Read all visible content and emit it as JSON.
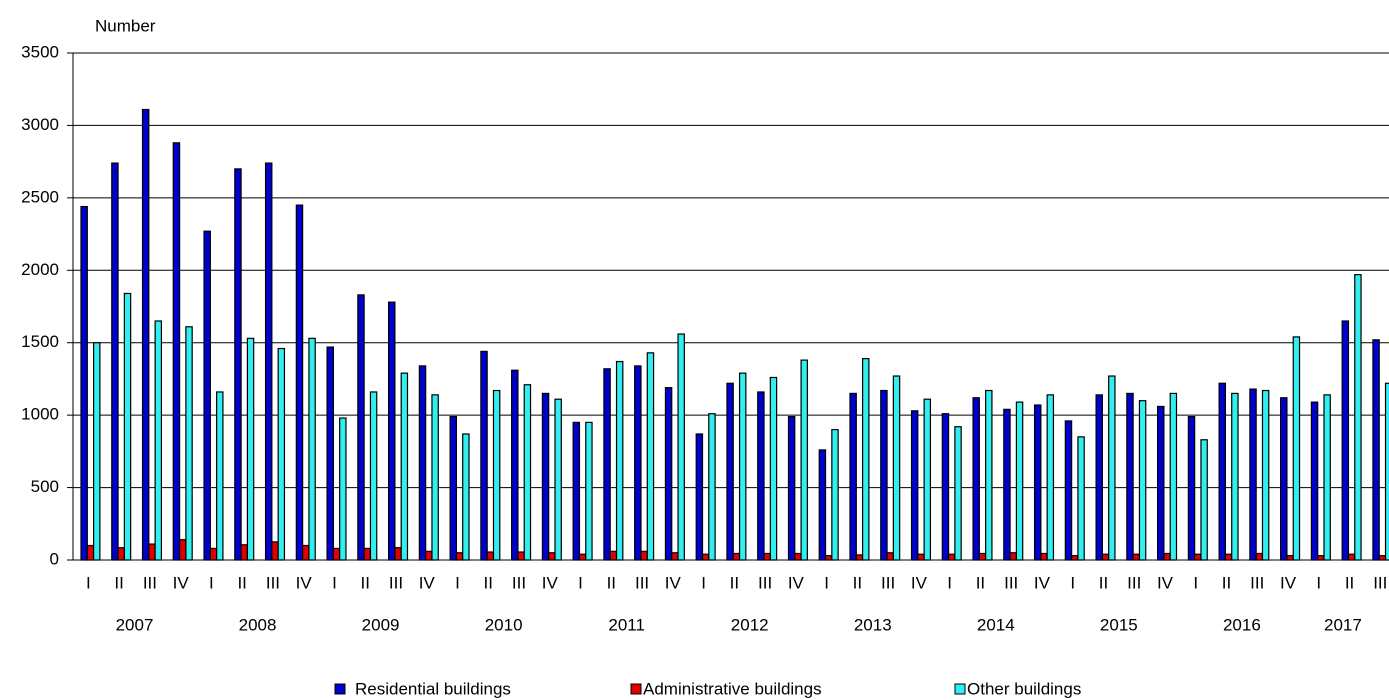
{
  "chart_data": {
    "type": "bar",
    "y_axis_label": "Number",
    "categories": [
      "I",
      "II",
      "III",
      "IV",
      "I",
      "II",
      "III",
      "IV",
      "I",
      "II",
      "III",
      "IV",
      "I",
      "II",
      "III",
      "IV",
      "I",
      "II",
      "III",
      "IV",
      "I",
      "II",
      "III",
      "IV",
      "I",
      "II",
      "III",
      "IV",
      "I",
      "II",
      "III",
      "IV",
      "I",
      "II",
      "III",
      "IV",
      "I",
      "II",
      "III",
      "IV",
      "I",
      "II",
      "III"
    ],
    "years": [
      "2007",
      "2008",
      "2009",
      "2010",
      "2011",
      "2012",
      "2013",
      "2014",
      "2015",
      "2016",
      "2017"
    ],
    "series": [
      {
        "name": "Residential buildings",
        "color": "#0000cc",
        "values": [
          2440,
          2740,
          3110,
          2880,
          2270,
          2700,
          2740,
          2450,
          1470,
          1830,
          1780,
          1340,
          990,
          1440,
          1310,
          1150,
          950,
          1320,
          1340,
          1190,
          870,
          1220,
          1160,
          990,
          760,
          1150,
          1170,
          1030,
          1010,
          1120,
          1040,
          1070,
          960,
          1140,
          1150,
          1060,
          990,
          1220,
          1180,
          1120,
          1090,
          1650,
          1520
        ]
      },
      {
        "name": "Administrative buildings",
        "color": "#e00000",
        "values": [
          100,
          85,
          110,
          140,
          80,
          105,
          125,
          100,
          80,
          80,
          85,
          60,
          50,
          55,
          55,
          50,
          40,
          60,
          60,
          50,
          40,
          45,
          45,
          45,
          30,
          35,
          50,
          40,
          40,
          45,
          50,
          45,
          30,
          40,
          40,
          45,
          40,
          40,
          45,
          30,
          30,
          40,
          30
        ]
      },
      {
        "name": "Other buildings",
        "color": "#33eeee",
        "values": [
          1500,
          1840,
          1650,
          1610,
          1160,
          1530,
          1460,
          1530,
          980,
          1160,
          1290,
          1140,
          870,
          1170,
          1210,
          1110,
          950,
          1370,
          1430,
          1560,
          1010,
          1290,
          1260,
          1380,
          900,
          1390,
          1270,
          1110,
          920,
          1170,
          1090,
          1140,
          850,
          1270,
          1100,
          1150,
          830,
          1150,
          1170,
          1540,
          1140,
          1970,
          1220
        ]
      }
    ],
    "ylim": [
      0,
      3500
    ],
    "yticks": [
      0,
      500,
      1000,
      1500,
      2000,
      2500,
      3000,
      3500
    ],
    "grid": true
  }
}
